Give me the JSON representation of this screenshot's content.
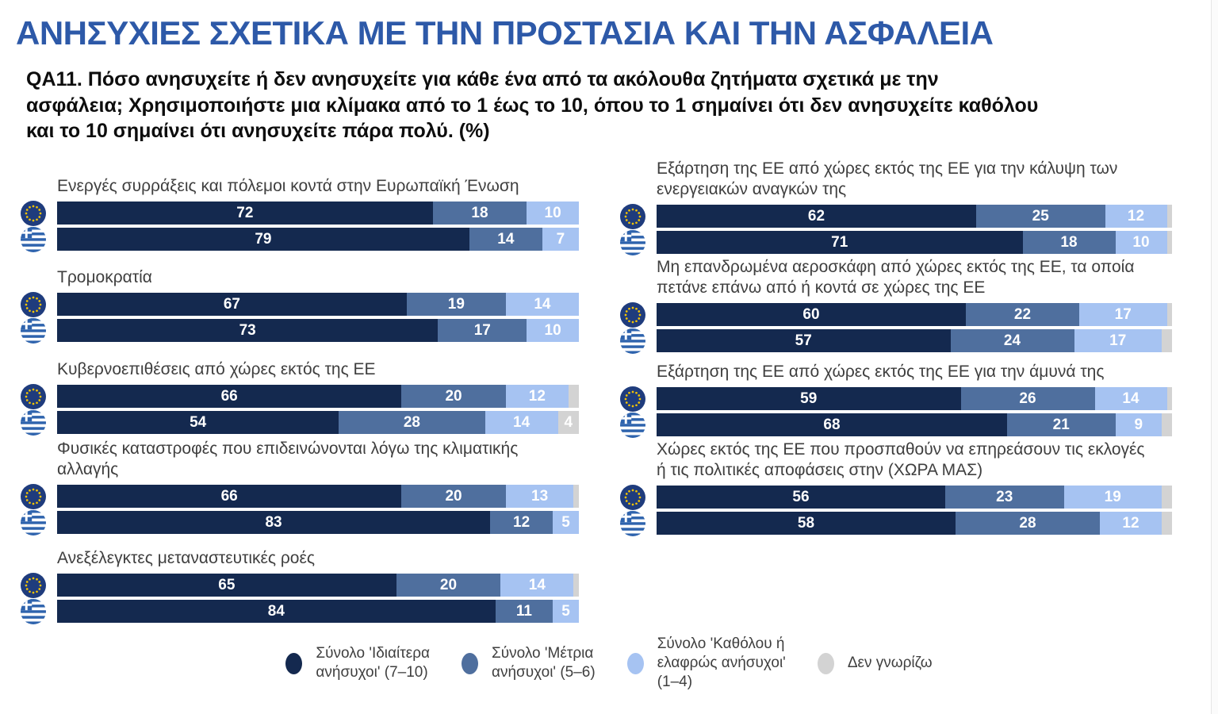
{
  "page": {
    "title": "ΑΝΗΣΥΧΙΕΣ ΣΧΕΤΙΚΑ ΜΕ ΤΗΝ ΠΡΟΣΤΑΣΙΑ ΚΑΙ ΤΗΝ ΑΣΦΑΛΕΙΑ",
    "question": "QA11. Πόσο ανησυχείτε ή δεν ανησυχείτε για κάθε ένα από τα ακόλουθα ζητήματα σχετικά με την\nασφάλεια; Χρησιμοποιήστε μια κλίμακα από το 1 έως το 10, όπου το 1 σημαίνει ότι δεν ανησυχείτε καθόλου\nκαι το 10 σημαίνει ότι ανησυχείτε πάρα πολύ. (%)"
  },
  "colors": {
    "title": "#2d59a8",
    "very": "#14294f",
    "moderate": "#4f6f9e",
    "low": "#a6c3f2",
    "dk": "#d3d3d3",
    "eu_flag_navy": "#1f3c7d",
    "eu_flag_star": "#f5c400",
    "greek_flag_blue": "#2e63ad"
  },
  "legend": [
    {
      "key": "very",
      "label": "Σύνολο 'Ιδιαίτερα\nανήσυχοι' (7–10)"
    },
    {
      "key": "moderate",
      "label": "Σύνολο 'Μέτρια\nανήσυχοι' (5–6)"
    },
    {
      "key": "low",
      "label": "Σύνολο 'Καθόλου ή\nελαφρώς ανήσυχοι'\n(1–4)"
    },
    {
      "key": "dk",
      "label": "Δεν γνωρίζω"
    }
  ],
  "chart_data": {
    "type": "bar",
    "stacked": true,
    "orientation": "horizontal",
    "xlim": [
      0,
      100
    ],
    "value_suffix": "%",
    "label_min_value": 4,
    "series": [
      "Σύνολο 'Ιδιαίτερα ανήσυχοι' (7–10)",
      "Σύνολο 'Μέτρια ανήσυχοι' (5–6)",
      "Σύνολο 'Καθόλου ή ελαφρώς ανήσυχοι' (1–4)",
      "Δεν γνωρίζω"
    ],
    "series_keys": [
      "very",
      "moderate",
      "low",
      "dk"
    ],
    "entities": [
      {
        "id": "eu",
        "name": "Ευρωπαϊκή Ένωση"
      },
      {
        "id": "el",
        "name": "Ελλάδα"
      }
    ],
    "columns": [
      {
        "blocks": [
          {
            "label": "Ενεργές συρράξεις και πόλεμοι κοντά στην Ευρωπαϊκή Ένωση",
            "rows": [
              {
                "entity": "eu",
                "values": [
                  72,
                  18,
                  10,
                  0
                ]
              },
              {
                "entity": "el",
                "values": [
                  79,
                  14,
                  7,
                  0
                ]
              }
            ]
          },
          {
            "label": "Τρομοκρατία",
            "rows": [
              {
                "entity": "eu",
                "values": [
                  67,
                  19,
                  14,
                  0
                ]
              },
              {
                "entity": "el",
                "values": [
                  73,
                  17,
                  10,
                  0
                ]
              }
            ]
          },
          {
            "label": "Κυβερνοεπιθέσεις από χώρες εκτός της ΕΕ",
            "rows": [
              {
                "entity": "eu",
                "values": [
                  66,
                  20,
                  12,
                  2
                ]
              },
              {
                "entity": "el",
                "values": [
                  54,
                  28,
                  14,
                  4
                ]
              }
            ]
          },
          {
            "label": "Φυσικές καταστροφές που επιδεινώνονται λόγω της κλιματικής\nαλλαγής",
            "rows": [
              {
                "entity": "eu",
                "values": [
                  66,
                  20,
                  13,
                  1
                ]
              },
              {
                "entity": "el",
                "values": [
                  83,
                  12,
                  5,
                  0
                ]
              }
            ]
          },
          {
            "label": "Ανεξέλεγκτες μεταναστευτικές ροές",
            "rows": [
              {
                "entity": "eu",
                "values": [
                  65,
                  20,
                  14,
                  1
                ]
              },
              {
                "entity": "el",
                "values": [
                  84,
                  11,
                  5,
                  0
                ]
              }
            ]
          }
        ]
      },
      {
        "blocks": [
          {
            "label": "Εξάρτηση της ΕΕ από χώρες εκτός της ΕΕ για την κάλυψη των\nενεργειακών αναγκών της",
            "rows": [
              {
                "entity": "eu",
                "values": [
                  62,
                  25,
                  12,
                  1
                ]
              },
              {
                "entity": "el",
                "values": [
                  71,
                  18,
                  10,
                  1
                ]
              }
            ]
          },
          {
            "label": "Μη επανδρωμένα αεροσκάφη από χώρες εκτός της ΕΕ, τα οποία\nπετάνε επάνω από ή κοντά σε χώρες της ΕΕ",
            "rows": [
              {
                "entity": "eu",
                "values": [
                  60,
                  22,
                  17,
                  1
                ]
              },
              {
                "entity": "el",
                "values": [
                  57,
                  24,
                  17,
                  2
                ]
              }
            ]
          },
          {
            "label": "Εξάρτηση της ΕΕ από χώρες εκτός της ΕΕ για την άμυνά της",
            "rows": [
              {
                "entity": "eu",
                "values": [
                  59,
                  26,
                  14,
                  1
                ]
              },
              {
                "entity": "el",
                "values": [
                  68,
                  21,
                  9,
                  2
                ]
              }
            ]
          },
          {
            "label": "Χώρες εκτός της ΕΕ που προσπαθούν να επηρεάσουν τις εκλογές\nή τις πολιτικές αποφάσεις στην (ΧΩΡΑ ΜΑΣ)",
            "rows": [
              {
                "entity": "eu",
                "values": [
                  56,
                  23,
                  19,
                  2
                ]
              },
              {
                "entity": "el",
                "values": [
                  58,
                  28,
                  12,
                  2
                ]
              }
            ]
          }
        ]
      }
    ]
  }
}
